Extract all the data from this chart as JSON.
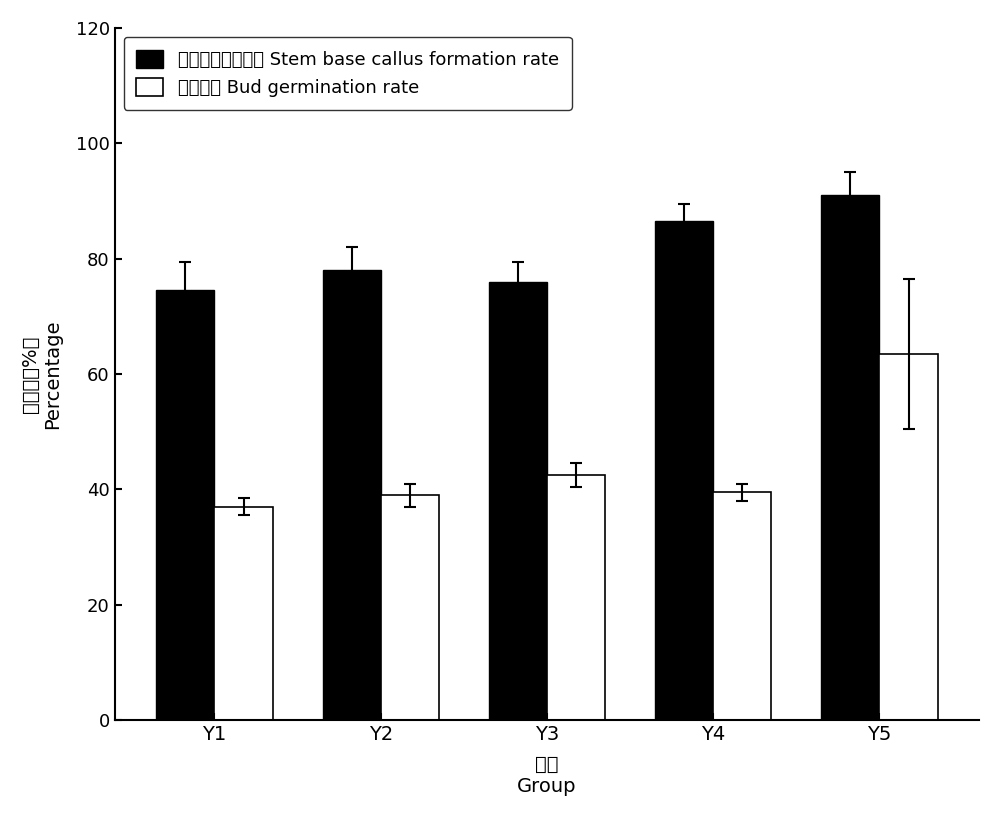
{
  "groups": [
    "Y1",
    "Y2",
    "Y3",
    "Y4",
    "Y5"
  ],
  "callus_values": [
    74.5,
    78.0,
    76.0,
    86.5,
    91.0
  ],
  "callus_errors": [
    5.0,
    4.0,
    3.5,
    3.0,
    4.0
  ],
  "bud_values": [
    37.0,
    39.0,
    42.5,
    39.5,
    63.5
  ],
  "bud_errors": [
    1.5,
    2.0,
    2.0,
    1.5,
    13.0
  ],
  "legend_callus": "茎基部愈伤形成率 Stem base callus formation rate",
  "legend_bud": "芽血发率 Bud germination rate",
  "ylabel_cn": "百分数（%）",
  "ylabel_en": "Percentage",
  "xlabel_cn": "组号",
  "xlabel_en": "Group",
  "ylim": [
    0,
    120
  ],
  "yticks": [
    0,
    20,
    40,
    60,
    80,
    100,
    120
  ],
  "bar_width": 0.35,
  "callus_color": "#000000",
  "bud_color": "#ffffff",
  "bud_edgecolor": "#000000",
  "background_color": "#ffffff"
}
